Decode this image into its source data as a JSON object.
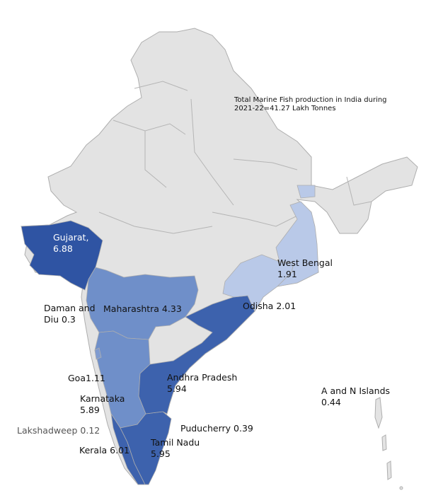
{
  "title": {
    "line1": "Total Marine Fish production in India during",
    "line2": "2021-22=41.27 Lakh Tonnes"
  },
  "unit": "Lakh Tonnes",
  "colors": {
    "background": "#ffffff",
    "land": "#e3e3e3",
    "border": "#aeaeae",
    "very_high": "#2f54a3",
    "high": "#3d62ad",
    "medium": "#6f8fc9",
    "low": "#b9c9e8"
  },
  "states": [
    {
      "name": "Gujarat",
      "name_text": "Gujarat,",
      "value": 6.88,
      "value_text": "6.88",
      "shade": "very_high"
    },
    {
      "name": "Daman and Diu",
      "line1": "Daman and",
      "line2": "Diu 0.3",
      "value": 0.3
    },
    {
      "name": "Maharashtra",
      "text": "Maharashtra 4.33",
      "value": 4.33,
      "shade": "medium"
    },
    {
      "name": "Goa",
      "text": "Goa1.11",
      "value": 1.11
    },
    {
      "name": "Karnataka",
      "name_text": "Karnataka",
      "value": 5.89,
      "value_text": "5.89",
      "shade": "medium"
    },
    {
      "name": "Kerala",
      "text": "Kerala 6.01",
      "value": 6.01,
      "shade": "high"
    },
    {
      "name": "Lakshadweep",
      "text": "Lakshadweep 0.12",
      "value": 0.12
    },
    {
      "name": "Tamil Nadu",
      "name_text": "Tamil Nadu",
      "value": 5.95,
      "value_text": "5.95",
      "shade": "high"
    },
    {
      "name": "Puducherry",
      "text": "Puducherry 0.39",
      "value": 0.39
    },
    {
      "name": "Andhra Pradesh",
      "name_text": "Andhra Pradesh",
      "value": 5.94,
      "value_text": "5.94",
      "shade": "high"
    },
    {
      "name": "Odisha",
      "text": "Odisha 2.01",
      "value": 2.01,
      "shade": "low"
    },
    {
      "name": "West Bengal",
      "name_text": "West Bengal",
      "value": 1.91,
      "value_text": "1.91",
      "shade": "low"
    },
    {
      "name": "A and N Islands",
      "name_text": "A and N Islands",
      "value": 0.44,
      "value_text": "0.44"
    }
  ]
}
